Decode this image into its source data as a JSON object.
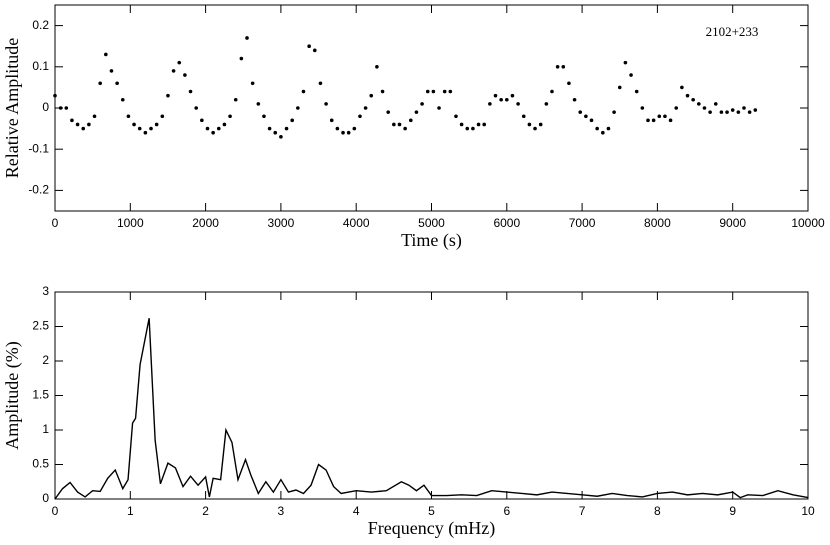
{
  "chart_data": [
    {
      "type": "scatter",
      "xlabel": "Time (s)",
      "ylabel": "Relative Amplitude",
      "annotation": "2102+233",
      "color": "#000000",
      "x": [
        0,
        75,
        150,
        225,
        300,
        375,
        450,
        525,
        600,
        675,
        750,
        825,
        900,
        975,
        1050,
        1125,
        1200,
        1275,
        1350,
        1425,
        1500,
        1575,
        1650,
        1725,
        1800,
        1875,
        1950,
        2025,
        2100,
        2175,
        2250,
        2325,
        2400,
        2475,
        2550,
        2625,
        2700,
        2775,
        2850,
        2925,
        3000,
        3075,
        3150,
        3225,
        3300,
        3375,
        3450,
        3525,
        3600,
        3675,
        3750,
        3825,
        3900,
        3975,
        4050,
        4125,
        4200,
        4275,
        4350,
        4425,
        4500,
        4575,
        4650,
        4725,
        4800,
        4875,
        4950,
        5025,
        5100,
        5175,
        5250,
        5325,
        5400,
        5475,
        5550,
        5625,
        5700,
        5775,
        5850,
        5925,
        6000,
        6075,
        6150,
        6225,
        6300,
        6375,
        6450,
        6525,
        6600,
        6675,
        6750,
        6825,
        6900,
        6975,
        7050,
        7125,
        7200,
        7275,
        7350,
        7425,
        7500,
        7575,
        7650,
        7725,
        7800,
        7875,
        7950,
        8025,
        8100,
        8175,
        8250,
        8325,
        8400,
        8475,
        8550,
        8625,
        8700,
        8775,
        8850,
        8925,
        9000,
        9075,
        9150,
        9225,
        9300
      ],
      "values": [
        0.03,
        0.0,
        0.0,
        -0.03,
        -0.04,
        -0.05,
        -0.04,
        -0.02,
        0.06,
        0.13,
        0.09,
        0.06,
        0.02,
        -0.02,
        -0.04,
        -0.05,
        -0.06,
        -0.05,
        -0.04,
        -0.02,
        0.03,
        0.09,
        0.11,
        0.08,
        0.04,
        0.0,
        -0.03,
        -0.05,
        -0.06,
        -0.05,
        -0.04,
        -0.02,
        0.02,
        0.12,
        0.17,
        0.06,
        0.01,
        -0.02,
        -0.05,
        -0.06,
        -0.07,
        -0.05,
        -0.03,
        0.0,
        0.04,
        0.15,
        0.14,
        0.06,
        0.01,
        -0.03,
        -0.05,
        -0.06,
        -0.06,
        -0.05,
        -0.02,
        0.0,
        0.03,
        0.1,
        0.04,
        -0.01,
        -0.04,
        -0.04,
        -0.05,
        -0.03,
        -0.01,
        0.01,
        0.04,
        0.04,
        0.0,
        0.04,
        0.04,
        -0.02,
        -0.04,
        -0.05,
        -0.05,
        -0.04,
        -0.04,
        0.01,
        0.03,
        0.02,
        0.02,
        0.03,
        0.01,
        -0.02,
        -0.04,
        -0.05,
        -0.04,
        0.01,
        0.04,
        0.1,
        0.1,
        0.06,
        0.02,
        -0.01,
        -0.02,
        -0.03,
        -0.05,
        -0.06,
        -0.05,
        -0.01,
        0.05,
        0.11,
        0.08,
        0.04,
        0.0,
        -0.03,
        -0.03,
        -0.02,
        -0.02,
        -0.03,
        0.0,
        0.05,
        0.03,
        0.02,
        0.01,
        0.0,
        -0.01,
        0.01,
        -0.01,
        -0.01,
        -0.005,
        -0.01,
        0.0,
        -0.01,
        -0.005
      ],
      "xlim": [
        0,
        10000
      ],
      "xticks": [
        0,
        1000,
        2000,
        3000,
        4000,
        5000,
        6000,
        7000,
        8000,
        9000,
        10000
      ],
      "ylim": [
        -0.25,
        0.25
      ],
      "yticks": [
        -0.2,
        -0.1,
        0,
        0.1,
        0.2
      ]
    },
    {
      "type": "line",
      "xlabel": "Frequency (mHz)",
      "ylabel": "Amplitude (%)",
      "color": "#000000",
      "x": [
        0,
        0.1,
        0.2,
        0.3,
        0.4,
        0.5,
        0.6,
        0.7,
        0.8,
        0.9,
        0.97,
        1.03,
        1.07,
        1.13,
        1.25,
        1.33,
        1.4,
        1.5,
        1.6,
        1.7,
        1.8,
        1.9,
        2.0,
        2.05,
        2.1,
        2.2,
        2.27,
        2.35,
        2.43,
        2.53,
        2.6,
        2.7,
        2.8,
        2.9,
        3.0,
        3.1,
        3.2,
        3.3,
        3.4,
        3.5,
        3.6,
        3.7,
        3.8,
        3.9,
        4.0,
        4.2,
        4.4,
        4.6,
        4.7,
        4.8,
        4.9,
        5.0,
        5.2,
        5.4,
        5.6,
        5.8,
        6.0,
        6.2,
        6.4,
        6.6,
        6.8,
        7.0,
        7.2,
        7.4,
        7.6,
        7.8,
        8.0,
        8.2,
        8.4,
        8.6,
        8.8,
        9.0,
        9.1,
        9.2,
        9.4,
        9.6,
        9.8,
        10.0
      ],
      "values": [
        0,
        0.15,
        0.24,
        0.1,
        0.03,
        0.12,
        0.11,
        0.3,
        0.42,
        0.15,
        0.28,
        1.1,
        1.17,
        1.95,
        2.62,
        0.85,
        0.22,
        0.52,
        0.45,
        0.18,
        0.33,
        0.2,
        0.32,
        0.03,
        0.3,
        0.28,
        1.0,
        0.82,
        0.28,
        0.57,
        0.35,
        0.08,
        0.25,
        0.1,
        0.28,
        0.1,
        0.13,
        0.08,
        0.2,
        0.5,
        0.42,
        0.18,
        0.08,
        0.1,
        0.12,
        0.1,
        0.12,
        0.25,
        0.2,
        0.12,
        0.2,
        0.05,
        0.05,
        0.06,
        0.05,
        0.12,
        0.1,
        0.08,
        0.06,
        0.1,
        0.08,
        0.06,
        0.04,
        0.08,
        0.05,
        0.03,
        0.08,
        0.1,
        0.06,
        0.08,
        0.06,
        0.1,
        0.02,
        0.06,
        0.05,
        0.12,
        0.06,
        0.02
      ],
      "xlim": [
        0,
        10
      ],
      "xticks": [
        0,
        1,
        2,
        3,
        4,
        5,
        6,
        7,
        8,
        9,
        10
      ],
      "ylim": [
        0,
        3
      ],
      "yticks": [
        0,
        0.5,
        1,
        1.5,
        2,
        2.5,
        3
      ]
    }
  ]
}
